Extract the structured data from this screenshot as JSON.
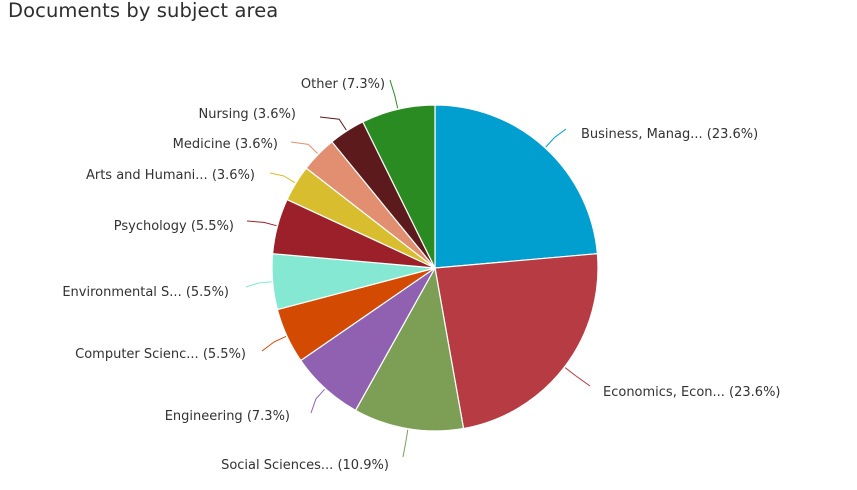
{
  "title": "Documents by subject area",
  "chart_data": {
    "type": "pie",
    "title": "Documents by subject area",
    "start": "12 o'clock, clockwise",
    "slices": [
      {
        "label": "Business, Manag... (23.6%)",
        "value": 23.6,
        "color": "#009fd0"
      },
      {
        "label": "Economics, Econ... (23.6%)",
        "value": 23.6,
        "color": "#b73b42"
      },
      {
        "label": "Social Sciences... (10.9%)",
        "value": 10.9,
        "color": "#7c9f55"
      },
      {
        "label": "Engineering (7.3%)",
        "value": 7.3,
        "color": "#9061b1"
      },
      {
        "label": "Computer Scienc... (5.5%)",
        "value": 5.5,
        "color": "#d34a03"
      },
      {
        "label": "Environmental S... (5.5%)",
        "value": 5.5,
        "color": "#85e8d3"
      },
      {
        "label": "Psychology (5.5%)",
        "value": 5.5,
        "color": "#9c2029"
      },
      {
        "label": "Arts and Humani... (3.6%)",
        "value": 3.6,
        "color": "#d8be2f"
      },
      {
        "label": "Medicine (3.6%)",
        "value": 3.6,
        "color": "#e28f71"
      },
      {
        "label": "Nursing (3.6%)",
        "value": 3.6,
        "color": "#5c1a1c"
      },
      {
        "label": "Other (7.3%)",
        "value": 7.3,
        "color": "#298b21"
      }
    ]
  }
}
